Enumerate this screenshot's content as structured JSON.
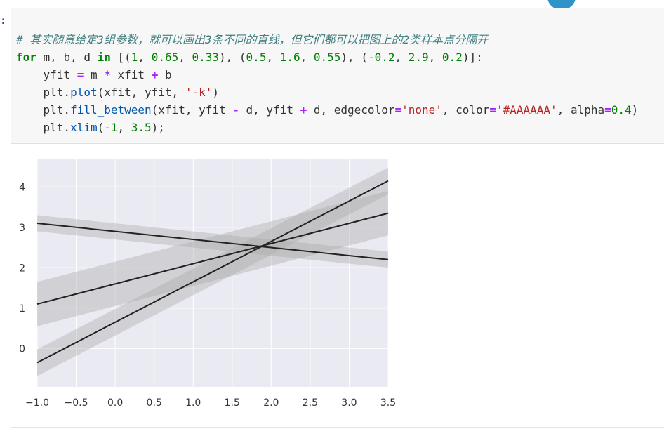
{
  "prompt": ":",
  "code_lines": [
    [
      {
        "t": "# 其实随意给定3组参数，就可以画出3条不同的直线，但它们都可以把图上的2类样本点分隔开",
        "c": "cm"
      }
    ],
    [
      {
        "t": "for",
        "c": "kw"
      },
      {
        "t": " m, b, d ",
        "c": "tx"
      },
      {
        "t": "in",
        "c": "kw"
      },
      {
        "t": " [(",
        "c": "tx"
      },
      {
        "t": "1",
        "c": "nm"
      },
      {
        "t": ", ",
        "c": "tx"
      },
      {
        "t": "0.65",
        "c": "nm"
      },
      {
        "t": ", ",
        "c": "tx"
      },
      {
        "t": "0.33",
        "c": "nm"
      },
      {
        "t": "), (",
        "c": "tx"
      },
      {
        "t": "0.5",
        "c": "nm"
      },
      {
        "t": ", ",
        "c": "tx"
      },
      {
        "t": "1.6",
        "c": "nm"
      },
      {
        "t": ", ",
        "c": "tx"
      },
      {
        "t": "0.55",
        "c": "nm"
      },
      {
        "t": "), (",
        "c": "tx"
      },
      {
        "t": "-0.2",
        "c": "nm"
      },
      {
        "t": ", ",
        "c": "tx"
      },
      {
        "t": "2.9",
        "c": "nm"
      },
      {
        "t": ", ",
        "c": "tx"
      },
      {
        "t": "0.2",
        "c": "nm"
      },
      {
        "t": ")]:",
        "c": "tx"
      }
    ],
    [
      {
        "t": "    yfit ",
        "c": "tx"
      },
      {
        "t": "=",
        "c": "op"
      },
      {
        "t": " m ",
        "c": "tx"
      },
      {
        "t": "*",
        "c": "op"
      },
      {
        "t": " xfit ",
        "c": "tx"
      },
      {
        "t": "+",
        "c": "op"
      },
      {
        "t": " b",
        "c": "tx"
      }
    ],
    [
      {
        "t": "    plt.",
        "c": "tx"
      },
      {
        "t": "plot",
        "c": "fn"
      },
      {
        "t": "(xfit, yfit, ",
        "c": "tx"
      },
      {
        "t": "'-k'",
        "c": "st"
      },
      {
        "t": ")",
        "c": "tx"
      }
    ],
    [
      {
        "t": "    plt.",
        "c": "tx"
      },
      {
        "t": "fill_between",
        "c": "fn"
      },
      {
        "t": "(xfit, yfit ",
        "c": "tx"
      },
      {
        "t": "-",
        "c": "op"
      },
      {
        "t": " d, yfit ",
        "c": "tx"
      },
      {
        "t": "+",
        "c": "op"
      },
      {
        "t": " d, edgecolor",
        "c": "tx"
      },
      {
        "t": "=",
        "c": "op"
      },
      {
        "t": "'none'",
        "c": "st"
      },
      {
        "t": ", color",
        "c": "tx"
      },
      {
        "t": "=",
        "c": "op"
      },
      {
        "t": "'#AAAAAA'",
        "c": "st"
      },
      {
        "t": ", alpha",
        "c": "tx"
      },
      {
        "t": "=",
        "c": "op"
      },
      {
        "t": "0.4",
        "c": "nm"
      },
      {
        "t": ")",
        "c": "tx"
      }
    ],
    [
      {
        "t": "    plt.",
        "c": "tx"
      },
      {
        "t": "xlim",
        "c": "fn"
      },
      {
        "t": "(",
        "c": "tx"
      },
      {
        "t": "-1",
        "c": "nm"
      },
      {
        "t": ", ",
        "c": "tx"
      },
      {
        "t": "3.5",
        "c": "nm"
      },
      {
        "t": ");",
        "c": "tx"
      }
    ]
  ],
  "chart_data": {
    "type": "line",
    "title": "",
    "xlabel": "",
    "ylabel": "",
    "xlim": [
      -1,
      3.5
    ],
    "ylim": [
      -0.95,
      4.7
    ],
    "xticks": [
      "−1.0",
      "−0.5",
      "0.0",
      "0.5",
      "1.0",
      "1.5",
      "2.0",
      "2.5",
      "3.0",
      "3.5"
    ],
    "xtick_values": [
      -1.0,
      -0.5,
      0.0,
      0.5,
      1.0,
      1.5,
      2.0,
      2.5,
      3.0,
      3.5
    ],
    "yticks": [
      "0",
      "1",
      "2",
      "3",
      "4"
    ],
    "ytick_values": [
      0,
      1,
      2,
      3,
      4
    ],
    "grid": true,
    "line_color": "#222222",
    "band_color": "#AAAAAA",
    "band_alpha": 0.4,
    "plot_background": "#eaeaf2",
    "series": [
      {
        "m": 1,
        "b": 0.65,
        "d": 0.33
      },
      {
        "m": 0.5,
        "b": 1.6,
        "d": 0.55
      },
      {
        "m": -0.2,
        "b": 2.9,
        "d": 0.2
      }
    ]
  }
}
